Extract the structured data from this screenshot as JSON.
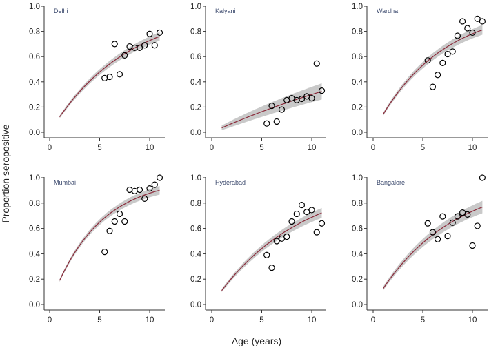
{
  "chart_data": {
    "type": "scatter",
    "ylabel": "Proportion seropositive",
    "xlabel": "Age (years)",
    "xlim": [
      -0.5,
      11.5
    ],
    "ylim": [
      0,
      1
    ],
    "xticks": [
      0,
      5,
      10
    ],
    "yticks": [
      0.0,
      0.2,
      0.4,
      0.6,
      0.8,
      1.0
    ],
    "ytick_labels": [
      "0.0",
      "0.2",
      "0.4",
      "0.6",
      "0.8",
      "1.0"
    ],
    "grid": false,
    "colors": {
      "fit": "#8b2a3a",
      "ci_band": "#c9c9c9",
      "points": "#000000",
      "panel_label": "#3c4a6e"
    },
    "ages": [
      5.5,
      6,
      6.5,
      7,
      7.5,
      8,
      8.5,
      9,
      9.5,
      10,
      10.5,
      11
    ],
    "fit_age_range": [
      1,
      11
    ],
    "panels": [
      {
        "name": "Delhi",
        "force_of_infection": 0.13,
        "ci_halfwidth": 0.03,
        "values": [
          0.43,
          0.44,
          0.7,
          0.46,
          0.61,
          0.68,
          0.67,
          0.67,
          0.69,
          0.78,
          0.69,
          0.79
        ]
      },
      {
        "name": "Kalyani",
        "force_of_infection": 0.0356,
        "ci_halfwidth": 0.06,
        "values": [
          0.07,
          0.21,
          0.085,
          0.18,
          0.255,
          0.27,
          0.255,
          0.265,
          0.285,
          0.27,
          0.545,
          0.33
        ]
      },
      {
        "name": "Wardha",
        "force_of_infection": 0.152,
        "ci_halfwidth": 0.035,
        "values": [
          0.57,
          0.36,
          0.455,
          0.55,
          0.62,
          0.64,
          0.765,
          0.88,
          0.825,
          0.79,
          0.9,
          0.88
        ]
      },
      {
        "name": "Mumbai",
        "force_of_infection": 0.21,
        "ci_halfwidth": 0.03,
        "values": [
          0.415,
          0.58,
          0.655,
          0.715,
          0.655,
          0.905,
          0.895,
          0.905,
          0.835,
          0.915,
          0.945,
          1.0
        ]
      },
      {
        "name": "Hyderabad",
        "force_of_infection": 0.1165,
        "ci_halfwidth": 0.035,
        "values": [
          0.39,
          0.29,
          0.5,
          0.52,
          0.535,
          0.655,
          0.715,
          0.785,
          0.73,
          0.745,
          0.57,
          0.64
        ]
      },
      {
        "name": "Bangalore",
        "force_of_infection": 0.133,
        "ci_halfwidth": 0.045,
        "values": [
          0.64,
          0.57,
          0.515,
          0.695,
          0.54,
          0.645,
          0.695,
          0.725,
          0.71,
          0.465,
          0.62,
          1.0
        ]
      }
    ]
  }
}
